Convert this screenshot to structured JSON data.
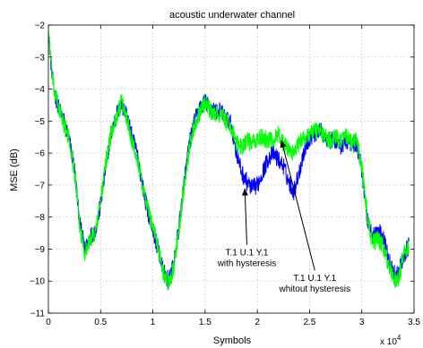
{
  "chart_data": {
    "type": "line",
    "title": "acoustic underwater channel",
    "xlabel": "Symbols",
    "ylabel": "MSE (dB)",
    "x_multiplier_label": "x 10",
    "x_multiplier_exp": "4",
    "xlim": [
      0,
      3.5
    ],
    "ylim": [
      -11,
      -2
    ],
    "xticks": [
      0,
      0.5,
      1,
      1.5,
      2,
      2.5,
      3,
      3.5
    ],
    "xtick_labels": [
      "0",
      "0.5",
      "1",
      "1.5",
      "2",
      "2.5",
      "3",
      "3.5"
    ],
    "yticks": [
      -11,
      -10,
      -9,
      -8,
      -7,
      -6,
      -5,
      -4,
      -3,
      -2
    ],
    "ytick_labels": [
      "−11",
      "−10",
      "−9",
      "−8",
      "−7",
      "−6",
      "−5",
      "−4",
      "−3",
      "−2"
    ],
    "grid": true,
    "series": [
      {
        "color": "#0000ff",
        "x": [
          0,
          0.02,
          0.05,
          0.1,
          0.15,
          0.2,
          0.25,
          0.3,
          0.35,
          0.4,
          0.45,
          0.5,
          0.55,
          0.6,
          0.65,
          0.7,
          0.75,
          0.8,
          0.85,
          0.9,
          0.95,
          1.0,
          1.05,
          1.1,
          1.15,
          1.2,
          1.25,
          1.3,
          1.35,
          1.4,
          1.45,
          1.5,
          1.55,
          1.6,
          1.65,
          1.7,
          1.75,
          1.8,
          1.85,
          1.9,
          1.95,
          2.0,
          2.05,
          2.1,
          2.15,
          2.2,
          2.25,
          2.3,
          2.35,
          2.4,
          2.45,
          2.5,
          2.55,
          2.6,
          2.65,
          2.7,
          2.75,
          2.8,
          2.85,
          2.9,
          2.95,
          3.0,
          3.05,
          3.1,
          3.15,
          3.2,
          3.25,
          3.3,
          3.35,
          3.4,
          3.45
        ],
        "y": [
          -2.2,
          -3.0,
          -4.0,
          -4.6,
          -5.0,
          -5.6,
          -6.5,
          -8.2,
          -9.0,
          -8.6,
          -8.4,
          -7.6,
          -6.4,
          -5.4,
          -4.8,
          -4.5,
          -4.8,
          -5.5,
          -6.0,
          -7.0,
          -7.8,
          -8.4,
          -9.0,
          -9.7,
          -10.0,
          -9.5,
          -8.3,
          -6.9,
          -5.7,
          -5.0,
          -4.6,
          -4.4,
          -4.6,
          -4.7,
          -4.7,
          -4.9,
          -5.1,
          -6.0,
          -6.6,
          -6.9,
          -7.1,
          -7.0,
          -6.6,
          -6.2,
          -6.0,
          -6.2,
          -6.4,
          -6.9,
          -7.2,
          -6.6,
          -5.9,
          -5.5,
          -5.4,
          -5.3,
          -5.5,
          -5.6,
          -5.6,
          -5.8,
          -5.6,
          -5.7,
          -5.7,
          -6.5,
          -8.0,
          -8.6,
          -8.4,
          -8.6,
          -9.2,
          -9.7,
          -9.8,
          -9.2,
          -8.9
        ]
      },
      {
        "color": "#00ff00",
        "x": [
          0,
          0.02,
          0.05,
          0.1,
          0.15,
          0.2,
          0.25,
          0.3,
          0.35,
          0.4,
          0.45,
          0.5,
          0.55,
          0.6,
          0.65,
          0.7,
          0.75,
          0.8,
          0.85,
          0.9,
          0.95,
          1.0,
          1.05,
          1.1,
          1.15,
          1.2,
          1.25,
          1.3,
          1.35,
          1.4,
          1.45,
          1.5,
          1.55,
          1.6,
          1.65,
          1.7,
          1.75,
          1.8,
          1.85,
          1.9,
          1.95,
          2.0,
          2.05,
          2.1,
          2.15,
          2.2,
          2.25,
          2.3,
          2.35,
          2.4,
          2.45,
          2.5,
          2.55,
          2.6,
          2.65,
          2.7,
          2.75,
          2.8,
          2.85,
          2.9,
          2.95,
          3.0,
          3.05,
          3.1,
          3.15,
          3.2,
          3.25,
          3.3,
          3.35,
          3.4,
          3.45
        ],
        "y": [
          -2.1,
          -3.0,
          -4.0,
          -4.6,
          -5.1,
          -5.6,
          -6.6,
          -8.3,
          -9.1,
          -8.7,
          -8.5,
          -7.5,
          -6.3,
          -5.4,
          -4.9,
          -4.4,
          -4.9,
          -5.6,
          -6.1,
          -7.0,
          -7.7,
          -8.3,
          -8.9,
          -9.7,
          -10.1,
          -9.6,
          -8.4,
          -7.0,
          -5.8,
          -5.1,
          -4.7,
          -4.4,
          -4.7,
          -4.8,
          -4.8,
          -5.0,
          -5.2,
          -5.7,
          -5.8,
          -5.6,
          -5.7,
          -5.6,
          -5.5,
          -5.6,
          -5.6,
          -5.4,
          -5.7,
          -5.9,
          -6.0,
          -5.7,
          -5.5,
          -5.4,
          -5.3,
          -5.3,
          -5.5,
          -5.6,
          -5.5,
          -5.6,
          -5.5,
          -5.7,
          -5.6,
          -6.4,
          -7.9,
          -8.8,
          -8.7,
          -8.9,
          -9.4,
          -9.9,
          -10.0,
          -9.1,
          -9.0
        ]
      }
    ],
    "annotations": [
      {
        "lines": [
          "T.1 U.1 Y.1",
          "with hysteresis"
        ],
        "text_at": [
          1.9,
          -9.2
        ],
        "arrow_to": [
          1.88,
          -7.1
        ]
      },
      {
        "lines": [
          "T.1 U.1 Y.1",
          "whitout hysteresis"
        ],
        "text_at": [
          2.55,
          -10.0
        ],
        "arrow_to": [
          2.23,
          -5.6
        ]
      }
    ]
  }
}
